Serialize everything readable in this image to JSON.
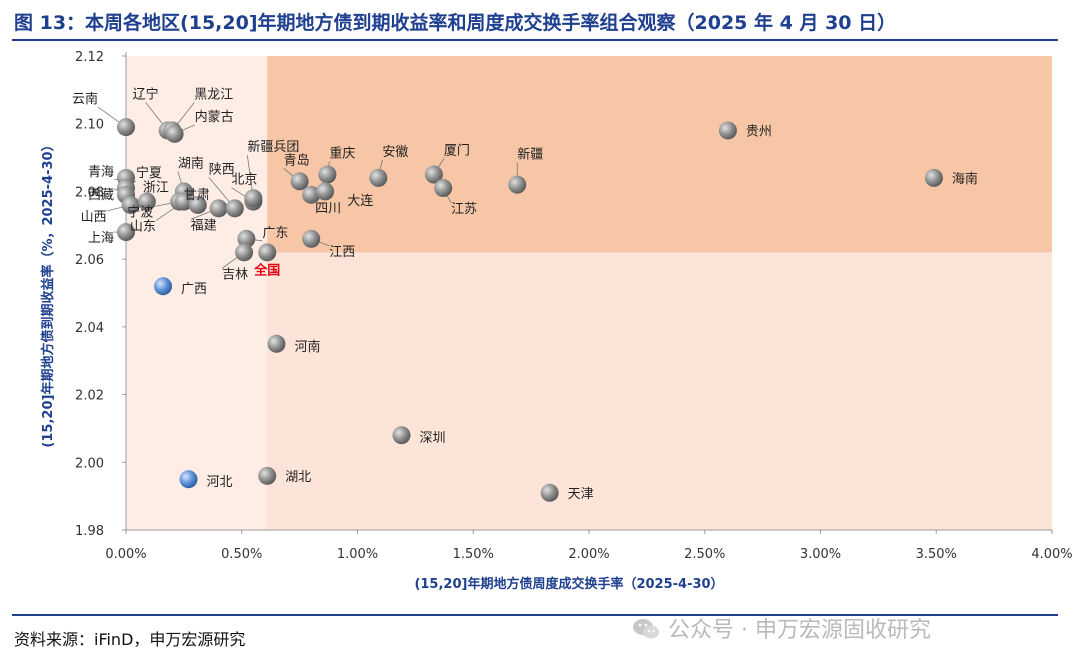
{
  "title": "图 13：本周各地区(15,20]年期地方债到期收益率和周度成交换手率组合观察（2025 年 4 月 30 日）",
  "source": "资料来源：iFinD，申万宏源研究",
  "watermark": "公众号 · 申万宏源固收研究",
  "colors": {
    "title": "#1f3f8f",
    "quadrant_light": "#fde4d8",
    "quadrant_dark": "#f6c6a6",
    "bubble_gray": "#8a8a8a",
    "bubble_blue": "#5b8fd6",
    "national_label": "#e60012"
  },
  "chart_data": {
    "type": "scatter",
    "title": "本周各地区(15,20]年期地方债到期收益率和周度成交换手率组合观察",
    "xlabel": "(15,20]年期地方债周度成交换手率（2025-4-30）",
    "ylabel": "(15,20]年期地方债到期收益率（%，2025-4-30）",
    "xlim": [
      0,
      4.0
    ],
    "ylim": [
      1.98,
      2.12
    ],
    "x_unit": "%",
    "x_ticks": [
      "0.00%",
      "0.50%",
      "1.00%",
      "1.50%",
      "2.00%",
      "2.50%",
      "3.00%",
      "3.50%",
      "4.00%"
    ],
    "y_ticks": [
      "1.98",
      "2.00",
      "2.02",
      "2.04",
      "2.06",
      "2.08",
      "2.10",
      "2.12"
    ],
    "reference": {
      "name": "全国",
      "x": 0.61,
      "y": 2.062
    },
    "points": [
      {
        "name": "云南",
        "x": 0.0,
        "y": 2.099,
        "color": "gray"
      },
      {
        "name": "辽宁",
        "x": 0.18,
        "y": 2.098,
        "color": "gray"
      },
      {
        "name": "黑龙江",
        "x": 0.2,
        "y": 2.098,
        "color": "gray"
      },
      {
        "name": "内蒙古",
        "x": 0.21,
        "y": 2.097,
        "color": "gray"
      },
      {
        "name": "青海",
        "x": 0.0,
        "y": 2.084,
        "color": "gray"
      },
      {
        "name": "宁夏",
        "x": 0.0,
        "y": 2.081,
        "color": "gray"
      },
      {
        "name": "西藏",
        "x": 0.0,
        "y": 2.079,
        "color": "gray"
      },
      {
        "name": "山西",
        "x": 0.02,
        "y": 2.076,
        "color": "gray"
      },
      {
        "name": "上海",
        "x": 0.0,
        "y": 2.068,
        "color": "gray"
      },
      {
        "name": "浙江",
        "x": 0.09,
        "y": 2.077,
        "color": "gray"
      },
      {
        "name": "湖南",
        "x": 0.25,
        "y": 2.08,
        "color": "gray"
      },
      {
        "name": "宁波",
        "x": 0.23,
        "y": 2.077,
        "color": "gray"
      },
      {
        "name": "山东",
        "x": 0.25,
        "y": 2.077,
        "color": "gray"
      },
      {
        "name": "甘肃",
        "x": 0.31,
        "y": 2.076,
        "color": "gray"
      },
      {
        "name": "福建",
        "x": 0.4,
        "y": 2.075,
        "color": "gray"
      },
      {
        "name": "陕西",
        "x": 0.47,
        "y": 2.075,
        "color": "gray"
      },
      {
        "name": "北京",
        "x": 0.55,
        "y": 2.077,
        "color": "gray"
      },
      {
        "name": "新疆兵团",
        "x": 0.55,
        "y": 2.078,
        "color": "gray"
      },
      {
        "name": "广东",
        "x": 0.52,
        "y": 2.066,
        "color": "gray"
      },
      {
        "name": "吉林",
        "x": 0.51,
        "y": 2.062,
        "color": "gray"
      },
      {
        "name": "青岛",
        "x": 0.75,
        "y": 2.083,
        "color": "gray"
      },
      {
        "name": "重庆",
        "x": 0.87,
        "y": 2.085,
        "color": "gray"
      },
      {
        "name": "大连",
        "x": 0.8,
        "y": 2.079,
        "color": "gray"
      },
      {
        "name": "四川",
        "x": 0.86,
        "y": 2.08,
        "color": "gray"
      },
      {
        "name": "江西",
        "x": 0.8,
        "y": 2.066,
        "color": "gray"
      },
      {
        "name": "安徽",
        "x": 1.09,
        "y": 2.084,
        "color": "gray"
      },
      {
        "name": "厦门",
        "x": 1.33,
        "y": 2.085,
        "color": "gray"
      },
      {
        "name": "江苏",
        "x": 1.37,
        "y": 2.081,
        "color": "gray"
      },
      {
        "name": "新疆",
        "x": 1.69,
        "y": 2.082,
        "color": "gray"
      },
      {
        "name": "贵州",
        "x": 2.6,
        "y": 2.098,
        "color": "gray"
      },
      {
        "name": "海南",
        "x": 3.49,
        "y": 2.084,
        "color": "gray"
      },
      {
        "name": "广西",
        "x": 0.16,
        "y": 2.052,
        "color": "blue"
      },
      {
        "name": "河南",
        "x": 0.65,
        "y": 2.035,
        "color": "gray"
      },
      {
        "name": "深圳",
        "x": 1.19,
        "y": 2.008,
        "color": "gray"
      },
      {
        "name": "河北",
        "x": 0.27,
        "y": 1.995,
        "color": "blue"
      },
      {
        "name": "湖北",
        "x": 0.61,
        "y": 1.996,
        "color": "gray"
      },
      {
        "name": "天津",
        "x": 1.83,
        "y": 1.991,
        "color": "gray"
      }
    ]
  }
}
